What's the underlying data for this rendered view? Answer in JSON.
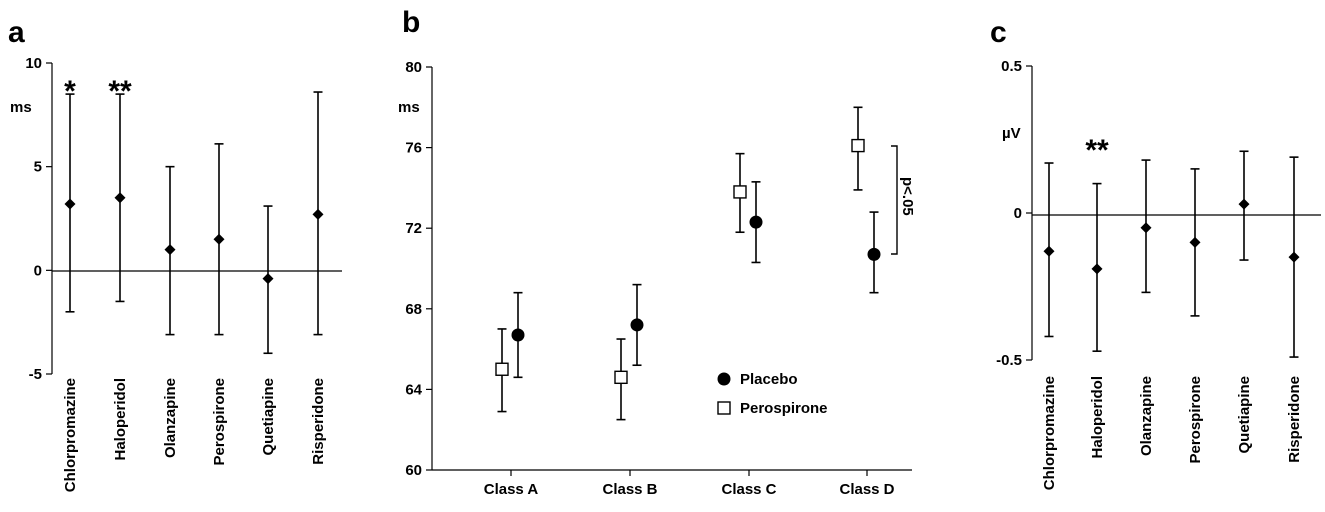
{
  "chart_data": [
    {
      "panel": "a",
      "type": "scatter",
      "unit": "ms",
      "ylim": [
        -5,
        10
      ],
      "yticks": [
        "10",
        "5",
        "0",
        "-5"
      ],
      "categories": [
        "Chlorpromazine",
        "Haloperidol",
        "Olanzapine",
        "Perospirone",
        "Quetiapine",
        "Risperidone"
      ],
      "values": [
        3.2,
        3.5,
        1.0,
        1.5,
        -0.4,
        2.7
      ],
      "err_low": [
        -2.0,
        -1.5,
        -3.1,
        -3.1,
        -4.0,
        -3.1
      ],
      "err_high": [
        8.5,
        8.5,
        5.0,
        6.1,
        3.1,
        8.6
      ],
      "annotations": [
        "*",
        "**",
        "",
        "",
        "",
        ""
      ],
      "zero_line": true
    },
    {
      "panel": "b",
      "type": "scatter",
      "unit": "ms",
      "ylim": [
        60,
        80
      ],
      "yticks": [
        "80",
        "76",
        "72",
        "68",
        "64",
        "60"
      ],
      "categories": [
        "Class A",
        "Class B",
        "Class C",
        "Class D"
      ],
      "series": [
        {
          "name": "Placebo",
          "marker": "filled-circle",
          "values": [
            66.7,
            67.2,
            72.3,
            70.7
          ],
          "err_low": [
            64.6,
            65.2,
            70.3,
            68.8
          ],
          "err_high": [
            68.8,
            69.2,
            74.3,
            72.8
          ]
        },
        {
          "name": "Perospirone",
          "marker": "open-square",
          "values": [
            65.0,
            64.6,
            73.8,
            76.1
          ],
          "err_low": [
            62.9,
            62.5,
            71.8,
            73.9
          ],
          "err_high": [
            67.0,
            66.5,
            75.7,
            78.0
          ]
        }
      ],
      "bracket": {
        "category": "Class D",
        "label": "p<.05"
      },
      "legend_position": "lower-right"
    },
    {
      "panel": "c",
      "type": "scatter",
      "unit": "µV",
      "ylim": [
        -0.5,
        0.5
      ],
      "yticks": [
        "0.5",
        "0",
        "-0.5"
      ],
      "categories": [
        "Chlorpromazine",
        "Haloperidol",
        "Olanzapine",
        "Perospirone",
        "Quetiapine",
        "Risperidone"
      ],
      "values": [
        -0.13,
        -0.19,
        -0.05,
        -0.1,
        0.03,
        -0.15
      ],
      "err_low": [
        -0.42,
        -0.47,
        -0.27,
        -0.35,
        -0.16,
        -0.49
      ],
      "err_high": [
        0.17,
        0.1,
        0.18,
        0.15,
        0.21,
        0.19
      ],
      "annotations": [
        "",
        "**",
        "",
        "",
        "",
        ""
      ],
      "zero_line": true
    }
  ]
}
